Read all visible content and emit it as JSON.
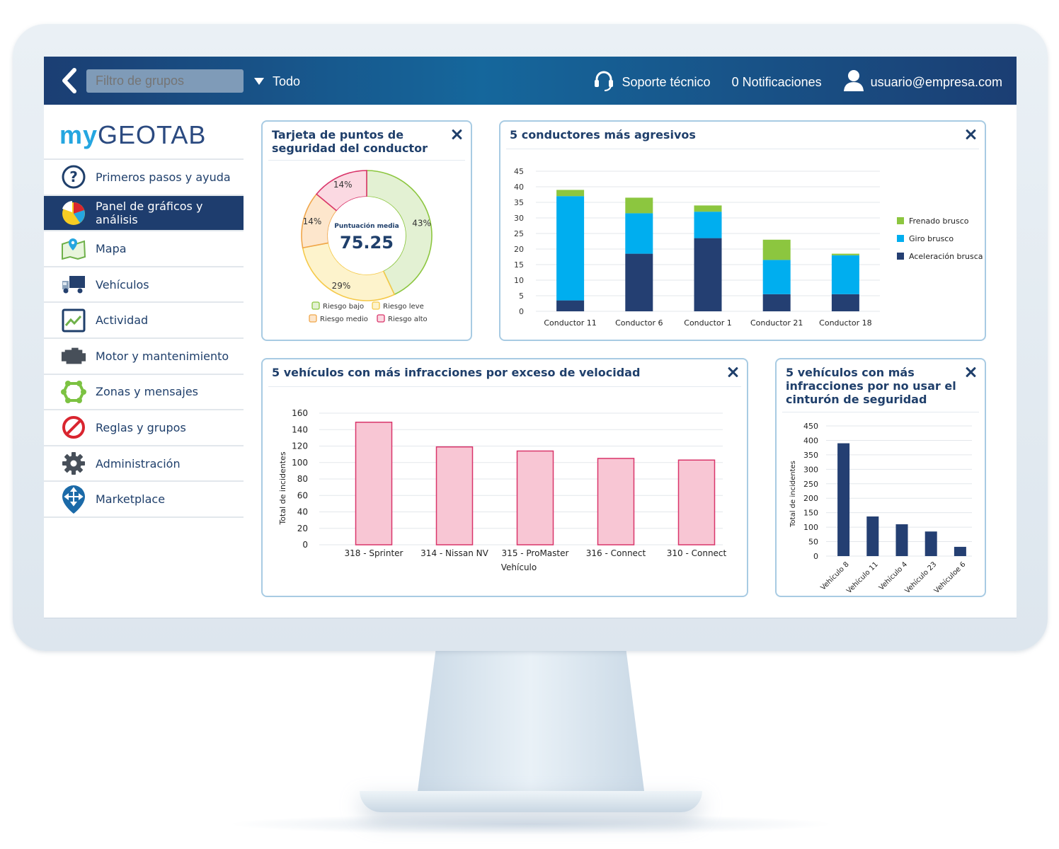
{
  "topbar": {
    "group_filter_placeholder": "Filtro de grupos",
    "dropdown_label": "Todo",
    "support_label": "Soporte técnico",
    "notifications_label": "0 Notificaciones",
    "user_label": "usuario@empresa.com"
  },
  "logo": {
    "my": "my",
    "geotab": "GEOTAB"
  },
  "sidebar": {
    "items": [
      {
        "label": "Primeros pasos y ayuda",
        "icon": "help-icon"
      },
      {
        "label": "Panel de gráficos y análisis",
        "icon": "pie-chart-icon",
        "active": true
      },
      {
        "label": "Mapa",
        "icon": "map-icon"
      },
      {
        "label": "Vehículos",
        "icon": "truck-icon"
      },
      {
        "label": "Actividad",
        "icon": "activity-icon"
      },
      {
        "label": "Motor y mantenimiento",
        "icon": "engine-icon"
      },
      {
        "label": "Zonas y mensajes",
        "icon": "zones-icon"
      },
      {
        "label": "Reglas y grupos",
        "icon": "rules-icon"
      },
      {
        "label": "Administración",
        "icon": "gear-icon"
      },
      {
        "label": "Marketplace",
        "icon": "marketplace-icon"
      }
    ]
  },
  "colors": {
    "nav_bg": "#1e3d6e",
    "brand_light": "#25a6e0",
    "brand_dark": "#2b4a80",
    "frenado": "#8cc63f",
    "giro": "#00aeef",
    "aceleracion": "#243f72",
    "speeding_bar": "#f8c6d4",
    "speeding_border": "#d9356a",
    "seatbelt_bar": "#243f72"
  },
  "cards": {
    "safety": {
      "title": "Tarjeta de puntos de seguridad del conductor",
      "center_label": "Puntuación media",
      "center_value": "75.25"
    },
    "aggressive": {
      "title": "5 conductores más agresivos"
    },
    "speeding": {
      "title": "5 vehículos con más infracciones por exceso de velocidad"
    },
    "seatbelt": {
      "title": "5 vehículos con más infracciones por no usar el cinturón de seguridad"
    }
  },
  "chart_data": [
    {
      "type": "pie",
      "title": "Tarjeta de puntos de seguridad del conductor",
      "categories": [
        "Riesgo bajo",
        "Riesgo leve",
        "Riesgo medio",
        "Riesgo alto"
      ],
      "values": [
        43,
        29,
        14,
        14
      ],
      "labels": [
        "43%",
        "29%",
        "14%",
        "14%"
      ],
      "colors": [
        "#8cc63f",
        "#f5c94a",
        "#f0a64a",
        "#d9356a"
      ],
      "fills": [
        "#e3f1d3",
        "#fdf3cc",
        "#fde6cc",
        "#fbd9e2"
      ],
      "legend": "bottom"
    },
    {
      "type": "bar",
      "title": "5 conductores más agresivos",
      "categories": [
        "Conductor 11",
        "Conductor 6",
        "Conductor 1",
        "Conductor 21",
        "Conductor 18"
      ],
      "series": [
        {
          "name": "Aceleración brusca",
          "values": [
            3.5,
            18.5,
            23.5,
            5.5,
            5.5
          ]
        },
        {
          "name": "Giro brusco",
          "values": [
            33.5,
            13,
            8.5,
            11,
            12.5
          ]
        },
        {
          "name": "Frenado brusco",
          "values": [
            2,
            5,
            2,
            6.5,
            0.5
          ]
        }
      ],
      "ylim": [
        0,
        45
      ],
      "yticks": [
        0,
        5,
        10,
        15,
        20,
        25,
        30,
        35,
        40,
        45
      ],
      "legend": "right",
      "stacked": true
    },
    {
      "type": "bar",
      "title": "5 vehículos con más infracciones por exceso de velocidad",
      "categories": [
        "318 - Sprinter",
        "314 - Nissan NV",
        "315 - ProMaster",
        "316 - Connect",
        "310 - Connect"
      ],
      "values": [
        149,
        119,
        114,
        105,
        103
      ],
      "xlabel": "Vehículo",
      "ylabel": "Total de incidentes",
      "ylim": [
        0,
        160
      ],
      "yticks": [
        0,
        20,
        40,
        60,
        80,
        100,
        120,
        140,
        160
      ]
    },
    {
      "type": "bar",
      "title": "5 vehículos con más infracciones por no usar el cinturón de seguridad",
      "categories": [
        "Vehículo 8",
        "Vehículo 11",
        "Vehículo 4",
        "Vehículo 23",
        "Vehículoe 6"
      ],
      "values": [
        390,
        137,
        110,
        85,
        32
      ],
      "ylabel": "Total de incidentes",
      "ylim": [
        0,
        450
      ],
      "yticks": [
        0,
        50,
        100,
        150,
        200,
        250,
        300,
        350,
        400,
        450
      ]
    }
  ]
}
